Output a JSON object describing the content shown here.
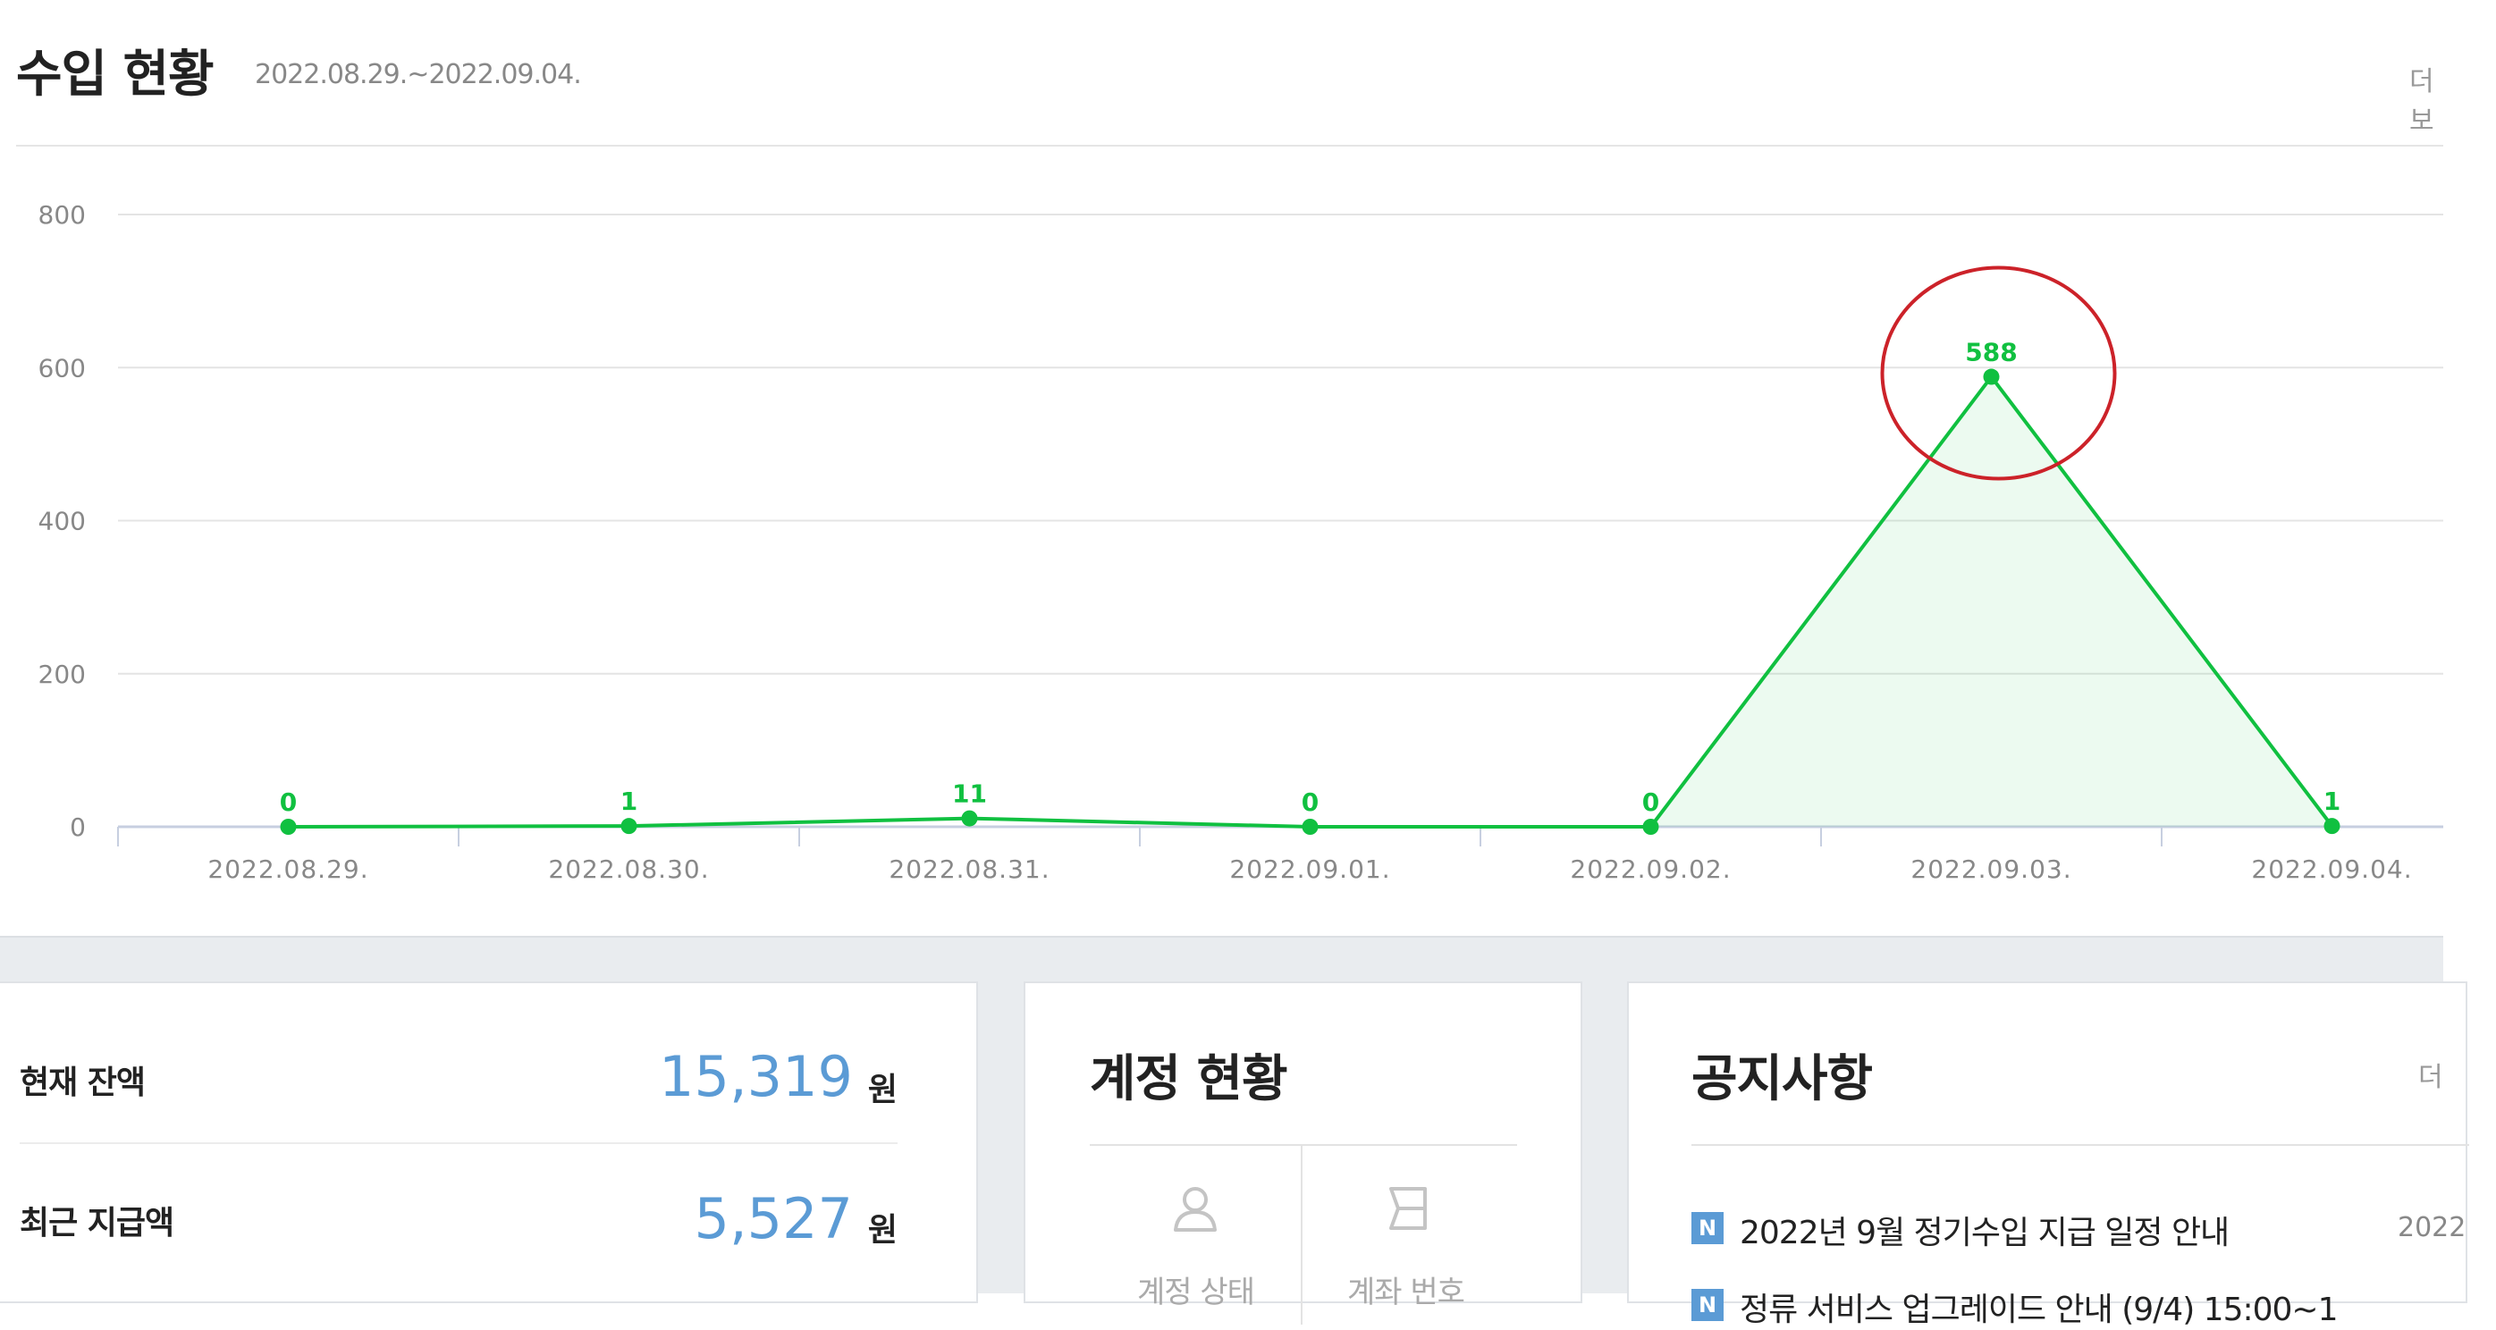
{
  "header": {
    "title": "수입 현황",
    "date_range": "2022.08.29.~2022.09.04.",
    "more_label": "더보"
  },
  "chart_data": {
    "type": "line",
    "title": "",
    "xlabel": "",
    "ylabel": "",
    "categories": [
      "2022.08.29.",
      "2022.08.30.",
      "2022.08.31.",
      "2022.09.01.",
      "2022.09.02.",
      "2022.09.03.",
      "2022.09.04."
    ],
    "series": [
      {
        "values": [
          0,
          1,
          11,
          0,
          0,
          588,
          1
        ]
      }
    ],
    "ylim": [
      0,
      800
    ],
    "yticks": [
      0,
      200,
      400,
      600,
      800
    ],
    "grid": true,
    "data_labels": true,
    "series_color": "#10c040",
    "shaded_area_under_segments": [
      "2022.09.02.",
      "2022.09.04."
    ],
    "highlight": {
      "category": "2022.09.03.",
      "shape": "red circle",
      "color": "#cc2229"
    }
  },
  "balance": {
    "current_label": "현재 잔액",
    "current_value": "15,319",
    "recent_label": "최근 지급액",
    "recent_value": "5,527",
    "unit": "원"
  },
  "account": {
    "title": "계정 현황",
    "status_label": "계정 상태",
    "number_label": "계좌 번호"
  },
  "notices": {
    "title": "공지사항",
    "more_label": "더",
    "badge": "N",
    "items": [
      {
        "title": "2022년 9월 정기수입 지급 일정 안내",
        "date": "2022"
      },
      {
        "title": "정류 서비스 업그레이드 안내 (9/4) 15:00~1",
        "date": ""
      }
    ]
  }
}
